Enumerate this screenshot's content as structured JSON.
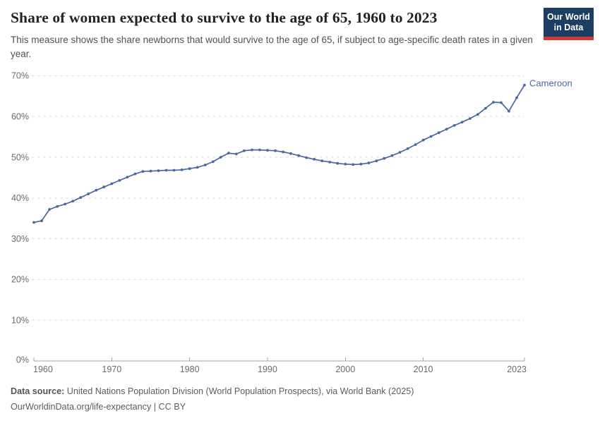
{
  "header": {
    "title": "Share of women expected to survive to the age of 65, 1960 to 2023",
    "subtitle": "This measure shows the share newborns that would survive to the age of 65, if subject to age-specific death rates in a given year.",
    "logo": {
      "line1": "Our World",
      "line2": "in Data"
    }
  },
  "chart_data": {
    "type": "line",
    "title": "Share of women expected to survive to the age of 65, 1960 to 2023",
    "entity": "Cameroon",
    "end_label": "Cameroon",
    "unit": "%",
    "grid": "dashed-horizontal",
    "legend_position": "end-of-line",
    "xlim": [
      1960,
      2023
    ],
    "ylim": [
      0,
      70
    ],
    "xticks": [
      1960,
      1970,
      1980,
      1990,
      2000,
      2010,
      2023
    ],
    "yticks": [
      0,
      10,
      20,
      30,
      40,
      50,
      60,
      70
    ],
    "ytick_suffix": "%",
    "x": [
      1960,
      1961,
      1962,
      1963,
      1964,
      1965,
      1966,
      1967,
      1968,
      1969,
      1970,
      1971,
      1972,
      1973,
      1974,
      1975,
      1976,
      1977,
      1978,
      1979,
      1980,
      1981,
      1982,
      1983,
      1984,
      1985,
      1986,
      1987,
      1988,
      1989,
      1990,
      1991,
      1992,
      1993,
      1994,
      1995,
      1996,
      1997,
      1998,
      1999,
      2000,
      2001,
      2002,
      2003,
      2004,
      2005,
      2006,
      2007,
      2008,
      2009,
      2010,
      2011,
      2012,
      2013,
      2014,
      2015,
      2016,
      2017,
      2018,
      2019,
      2020,
      2021,
      2022,
      2023
    ],
    "series": [
      {
        "name": "Cameroon",
        "color": "#4a67a3",
        "values": [
          34.0,
          34.4,
          37.2,
          37.9,
          38.5,
          39.2,
          40.1,
          41.0,
          41.9,
          42.7,
          43.5,
          44.3,
          45.1,
          45.9,
          46.5,
          46.6,
          46.7,
          46.8,
          46.8,
          46.9,
          47.2,
          47.5,
          48.1,
          48.9,
          50.0,
          51.0,
          50.8,
          51.6,
          51.8,
          51.8,
          51.7,
          51.6,
          51.3,
          50.9,
          50.4,
          49.9,
          49.5,
          49.1,
          48.8,
          48.5,
          48.3,
          48.2,
          48.3,
          48.6,
          49.1,
          49.7,
          50.4,
          51.2,
          52.1,
          53.1,
          54.2,
          55.1,
          56.0,
          56.9,
          57.8,
          58.6,
          59.5,
          60.5,
          62.0,
          63.5,
          63.4,
          61.3,
          64.6,
          67.7
        ]
      }
    ]
  },
  "footer": {
    "source_label": "Data source:",
    "source_text": " United Nations Population Division (World Population Prospects), via World Bank (2025)",
    "citation_link": "OurWorldinData.org/life-expectancy",
    "citation_license": " | CC BY"
  },
  "colors": {
    "line": "#4a67a3",
    "end_label": "#4a67a3",
    "gridline": "#dcdcdc",
    "axis": "#a6a6a6",
    "tick_label": "#6b6b6b",
    "logo_bg": "#1d3d63",
    "logo_red": "#cf3a34"
  }
}
